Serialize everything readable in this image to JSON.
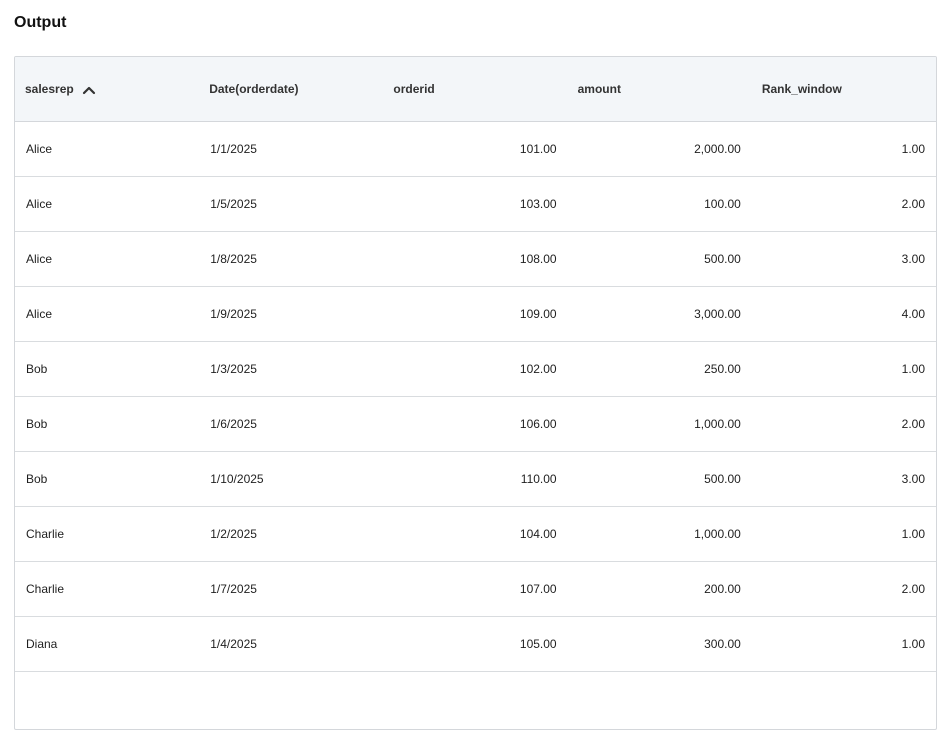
{
  "page": {
    "title": "Output"
  },
  "table": {
    "columns": [
      {
        "label": "salesrep",
        "sorted": "ascending",
        "sort_icon": "chevron-up-icon"
      },
      {
        "label": "Date(orderdate)"
      },
      {
        "label": "orderid"
      },
      {
        "label": "amount"
      },
      {
        "label": "Rank_window"
      }
    ],
    "rows": [
      {
        "salesrep": "Alice",
        "orderdate": "1/1/2025",
        "orderid": "101.00",
        "amount": "2,000.00",
        "rank": "1.00"
      },
      {
        "salesrep": "Alice",
        "orderdate": "1/5/2025",
        "orderid": "103.00",
        "amount": "100.00",
        "rank": "2.00"
      },
      {
        "salesrep": "Alice",
        "orderdate": "1/8/2025",
        "orderid": "108.00",
        "amount": "500.00",
        "rank": "3.00"
      },
      {
        "salesrep": "Alice",
        "orderdate": "1/9/2025",
        "orderid": "109.00",
        "amount": "3,000.00",
        "rank": "4.00"
      },
      {
        "salesrep": "Bob",
        "orderdate": "1/3/2025",
        "orderid": "102.00",
        "amount": "250.00",
        "rank": "1.00"
      },
      {
        "salesrep": "Bob",
        "orderdate": "1/6/2025",
        "orderid": "106.00",
        "amount": "1,000.00",
        "rank": "2.00"
      },
      {
        "salesrep": "Bob",
        "orderdate": "1/10/2025",
        "orderid": "110.00",
        "amount": "500.00",
        "rank": "3.00"
      },
      {
        "salesrep": "Charlie",
        "orderdate": "1/2/2025",
        "orderid": "104.00",
        "amount": "1,000.00",
        "rank": "1.00"
      },
      {
        "salesrep": "Charlie",
        "orderdate": "1/7/2025",
        "orderid": "107.00",
        "amount": "200.00",
        "rank": "2.00"
      },
      {
        "salesrep": "Diana",
        "orderdate": "1/4/2025",
        "orderid": "105.00",
        "amount": "300.00",
        "rank": "1.00"
      }
    ]
  }
}
